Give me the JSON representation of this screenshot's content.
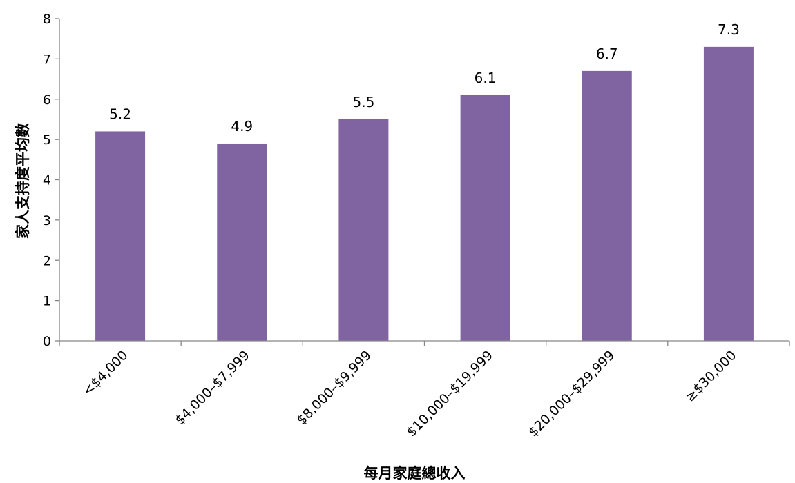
{
  "chart_data": {
    "type": "bar",
    "categories": [
      "<$4,000",
      "$4,000–$7,999",
      "$8,000–$9,999",
      "$10,000–$19,999",
      "$20,000–$29,999",
      "≥$30,000"
    ],
    "values": [
      5.2,
      4.9,
      5.5,
      6.1,
      6.7,
      7.3
    ],
    "data_labels": [
      "5.2",
      "4.9",
      "5.5",
      "6.1",
      "6.7",
      "7.3"
    ],
    "title": "",
    "xlabel": "每月家庭總收入",
    "ylabel": "家人支持度平均數",
    "ylim": [
      0,
      8
    ],
    "yticks": [
      0,
      1,
      2,
      3,
      4,
      5,
      6,
      7,
      8
    ],
    "grid": false,
    "legend": "none",
    "bar_color": "#8064A2"
  }
}
